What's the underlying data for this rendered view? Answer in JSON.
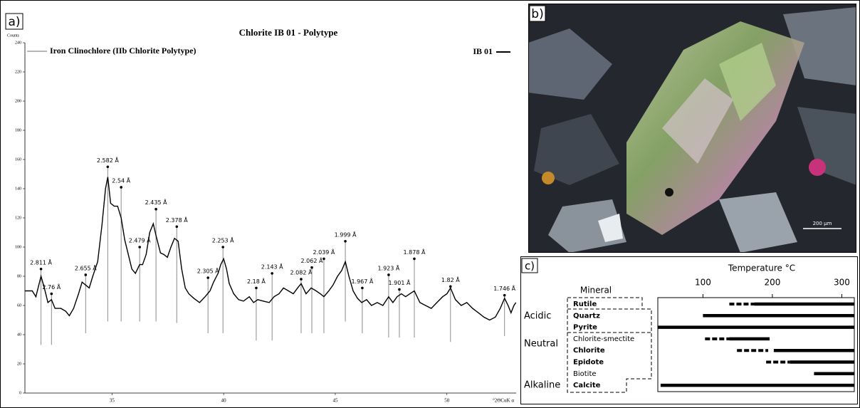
{
  "chart_data": [
    {
      "type": "line",
      "panel_label": "a)",
      "title": "Chlorite IB 01 - Polytype",
      "y_label": "Counts",
      "x_label": "°2ΘCuK α",
      "xlim": [
        31.1,
        53.1
      ],
      "ylim": [
        0,
        240
      ],
      "xticks": [
        35,
        40,
        45,
        50
      ],
      "yticks": [
        0,
        20,
        40,
        60,
        80,
        100,
        120,
        140,
        160,
        180,
        200,
        220,
        240
      ],
      "grid": false,
      "series": [
        {
          "name": "IB 01",
          "color": "#000000",
          "x": [
            31.11,
            31.43,
            31.59,
            31.82,
            31.97,
            32.13,
            32.29,
            32.45,
            32.71,
            32.93,
            33.09,
            33.28,
            33.5,
            33.66,
            33.82,
            33.98,
            34.14,
            34.36,
            34.55,
            34.71,
            34.81,
            34.94,
            35.1,
            35.25,
            35.41,
            35.57,
            35.73,
            35.89,
            36.05,
            36.24,
            36.37,
            36.53,
            36.69,
            36.85,
            36.97,
            37.17,
            37.32,
            37.48,
            37.64,
            37.8,
            37.96,
            38.12,
            38.28,
            38.44,
            38.66,
            38.92,
            39.17,
            39.39,
            39.55,
            39.75,
            39.87,
            40.0,
            40.13,
            40.25,
            40.45,
            40.67,
            40.89,
            41.15,
            41.34,
            41.53,
            41.78,
            42.04,
            42.26,
            42.48,
            42.68,
            42.9,
            43.12,
            43.31,
            43.47,
            43.69,
            43.92,
            44.14,
            44.33,
            44.49,
            44.71,
            44.9,
            45.1,
            45.29,
            45.45,
            45.61,
            45.8,
            45.99,
            46.18,
            46.4,
            46.62,
            46.88,
            47.13,
            47.39,
            47.58,
            47.77,
            47.96,
            48.15,
            48.34,
            48.54,
            48.79,
            49.04,
            49.3,
            49.55,
            49.81,
            50.0,
            50.16,
            50.38,
            50.64,
            50.89,
            51.15,
            51.41,
            51.66,
            51.91,
            52.17,
            52.39,
            52.58,
            52.74,
            52.87,
            53.0,
            53.09
          ],
          "values": [
            70,
            70,
            66,
            80,
            72,
            62,
            64,
            58,
            58,
            56,
            53,
            58,
            68,
            76,
            74,
            72,
            80,
            90,
            115,
            140,
            148,
            130,
            128,
            128,
            120,
            105,
            95,
            85,
            82,
            88,
            88,
            95,
            110,
            116,
            108,
            96,
            95,
            93,
            100,
            106,
            104,
            85,
            72,
            68,
            65,
            62,
            66,
            70,
            76,
            82,
            88,
            92,
            85,
            75,
            68,
            64,
            63,
            66,
            62,
            64,
            63,
            62,
            66,
            68,
            72,
            70,
            68,
            72,
            75,
            68,
            72,
            70,
            68,
            66,
            70,
            74,
            80,
            84,
            90,
            80,
            70,
            65,
            62,
            64,
            60,
            62,
            60,
            66,
            62,
            66,
            68,
            66,
            68,
            70,
            62,
            60,
            58,
            62,
            66,
            68,
            72,
            64,
            60,
            62,
            58,
            55,
            52,
            50,
            52,
            58,
            65,
            60,
            55,
            60,
            62
          ]
        }
      ],
      "reference": {
        "name": "Iron Clinochlore (IIb Chlorite Polytype)",
        "color": "#8c8c8c",
        "labels": [
          "2.811 Å",
          "2.76 Å",
          "2.655 Å",
          "2.582 Å",
          "2.54 Å",
          "2.479 Å",
          "2.435 Å",
          "2.378 Å",
          "2.305 Å",
          "2.253 Å",
          "2.18 Å",
          "2.143 Å",
          "2.082 Å",
          "2.062 Å",
          "2.039 Å",
          "1.999 Å",
          "1.967 Å",
          "1.923 Å",
          "1.901 Å",
          "1.878 Å",
          "1.82 Å",
          "1.746 Å"
        ],
        "x": [
          31.82,
          32.29,
          33.82,
          34.81,
          35.41,
          36.24,
          36.97,
          37.9,
          39.3,
          39.97,
          41.46,
          42.17,
          43.47,
          43.95,
          44.49,
          45.45,
          46.21,
          47.39,
          47.87,
          48.54,
          50.16,
          52.58
        ],
        "top": [
          85,
          68,
          81,
          155,
          141,
          100,
          126,
          114,
          79,
          100,
          72,
          82,
          78,
          86,
          92,
          104,
          72,
          81,
          71,
          92,
          73,
          67
        ],
        "bottom": [
          33,
          33,
          41,
          49,
          49,
          49,
          49,
          48,
          41,
          41,
          36,
          36,
          41,
          41,
          41,
          49,
          41,
          38,
          38,
          38,
          35,
          39
        ]
      }
    },
    {
      "type": "range",
      "panel_label": "c)",
      "title": "Temperature °C",
      "y_label": "Mineral",
      "xlim": [
        35,
        318
      ],
      "xticks": [
        100,
        200,
        300
      ],
      "groups": [
        "Acidic",
        "Neutral",
        "Alkaline"
      ],
      "categories": [
        "Rutile",
        "Quartz",
        "Pyrite",
        "Chlorite-smectite",
        "Chlorite",
        "Epidote",
        "Biotite",
        "Calcite"
      ],
      "bold": [
        true,
        true,
        true,
        false,
        true,
        true,
        false,
        true
      ],
      "ranges": [
        {
          "dashed": [
            138,
            174
          ],
          "solid": [
            174,
            318
          ]
        },
        {
          "dashed": null,
          "solid": [
            100,
            318
          ]
        },
        {
          "dashed": null,
          "solid": [
            35,
            318
          ]
        },
        {
          "dashed": [
            103,
            138
          ],
          "solid": [
            138,
            196
          ]
        },
        {
          "dashed": [
            149,
            194
          ],
          "solid": [
            202,
            318
          ]
        },
        {
          "dashed": [
            191,
            225
          ],
          "solid": [
            225,
            318
          ]
        },
        {
          "dashed": null,
          "solid": [
            260,
            318
          ]
        },
        {
          "dashed": null,
          "solid": [
            39,
            318
          ]
        }
      ]
    }
  ],
  "photo": {
    "panel_label": "b)",
    "scale_bar": "200 µm"
  }
}
